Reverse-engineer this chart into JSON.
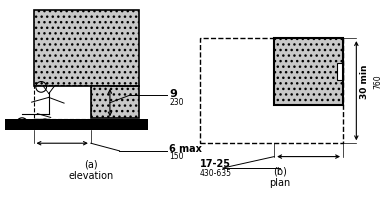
{
  "fig_width": 3.86,
  "fig_height": 2.17,
  "dpi": 100,
  "bg_color": "#ffffff",
  "label_a": "(a)\nelevation",
  "label_b": "(b)\nplan",
  "dim_9": "9",
  "dim_230": "230",
  "dim_6max": "6 max",
  "dim_150": "150",
  "dim_1725": "17-25",
  "dim_430635": "430-635",
  "dim_30min": "30 min",
  "dim_760": "760",
  "line_color": "#000000"
}
